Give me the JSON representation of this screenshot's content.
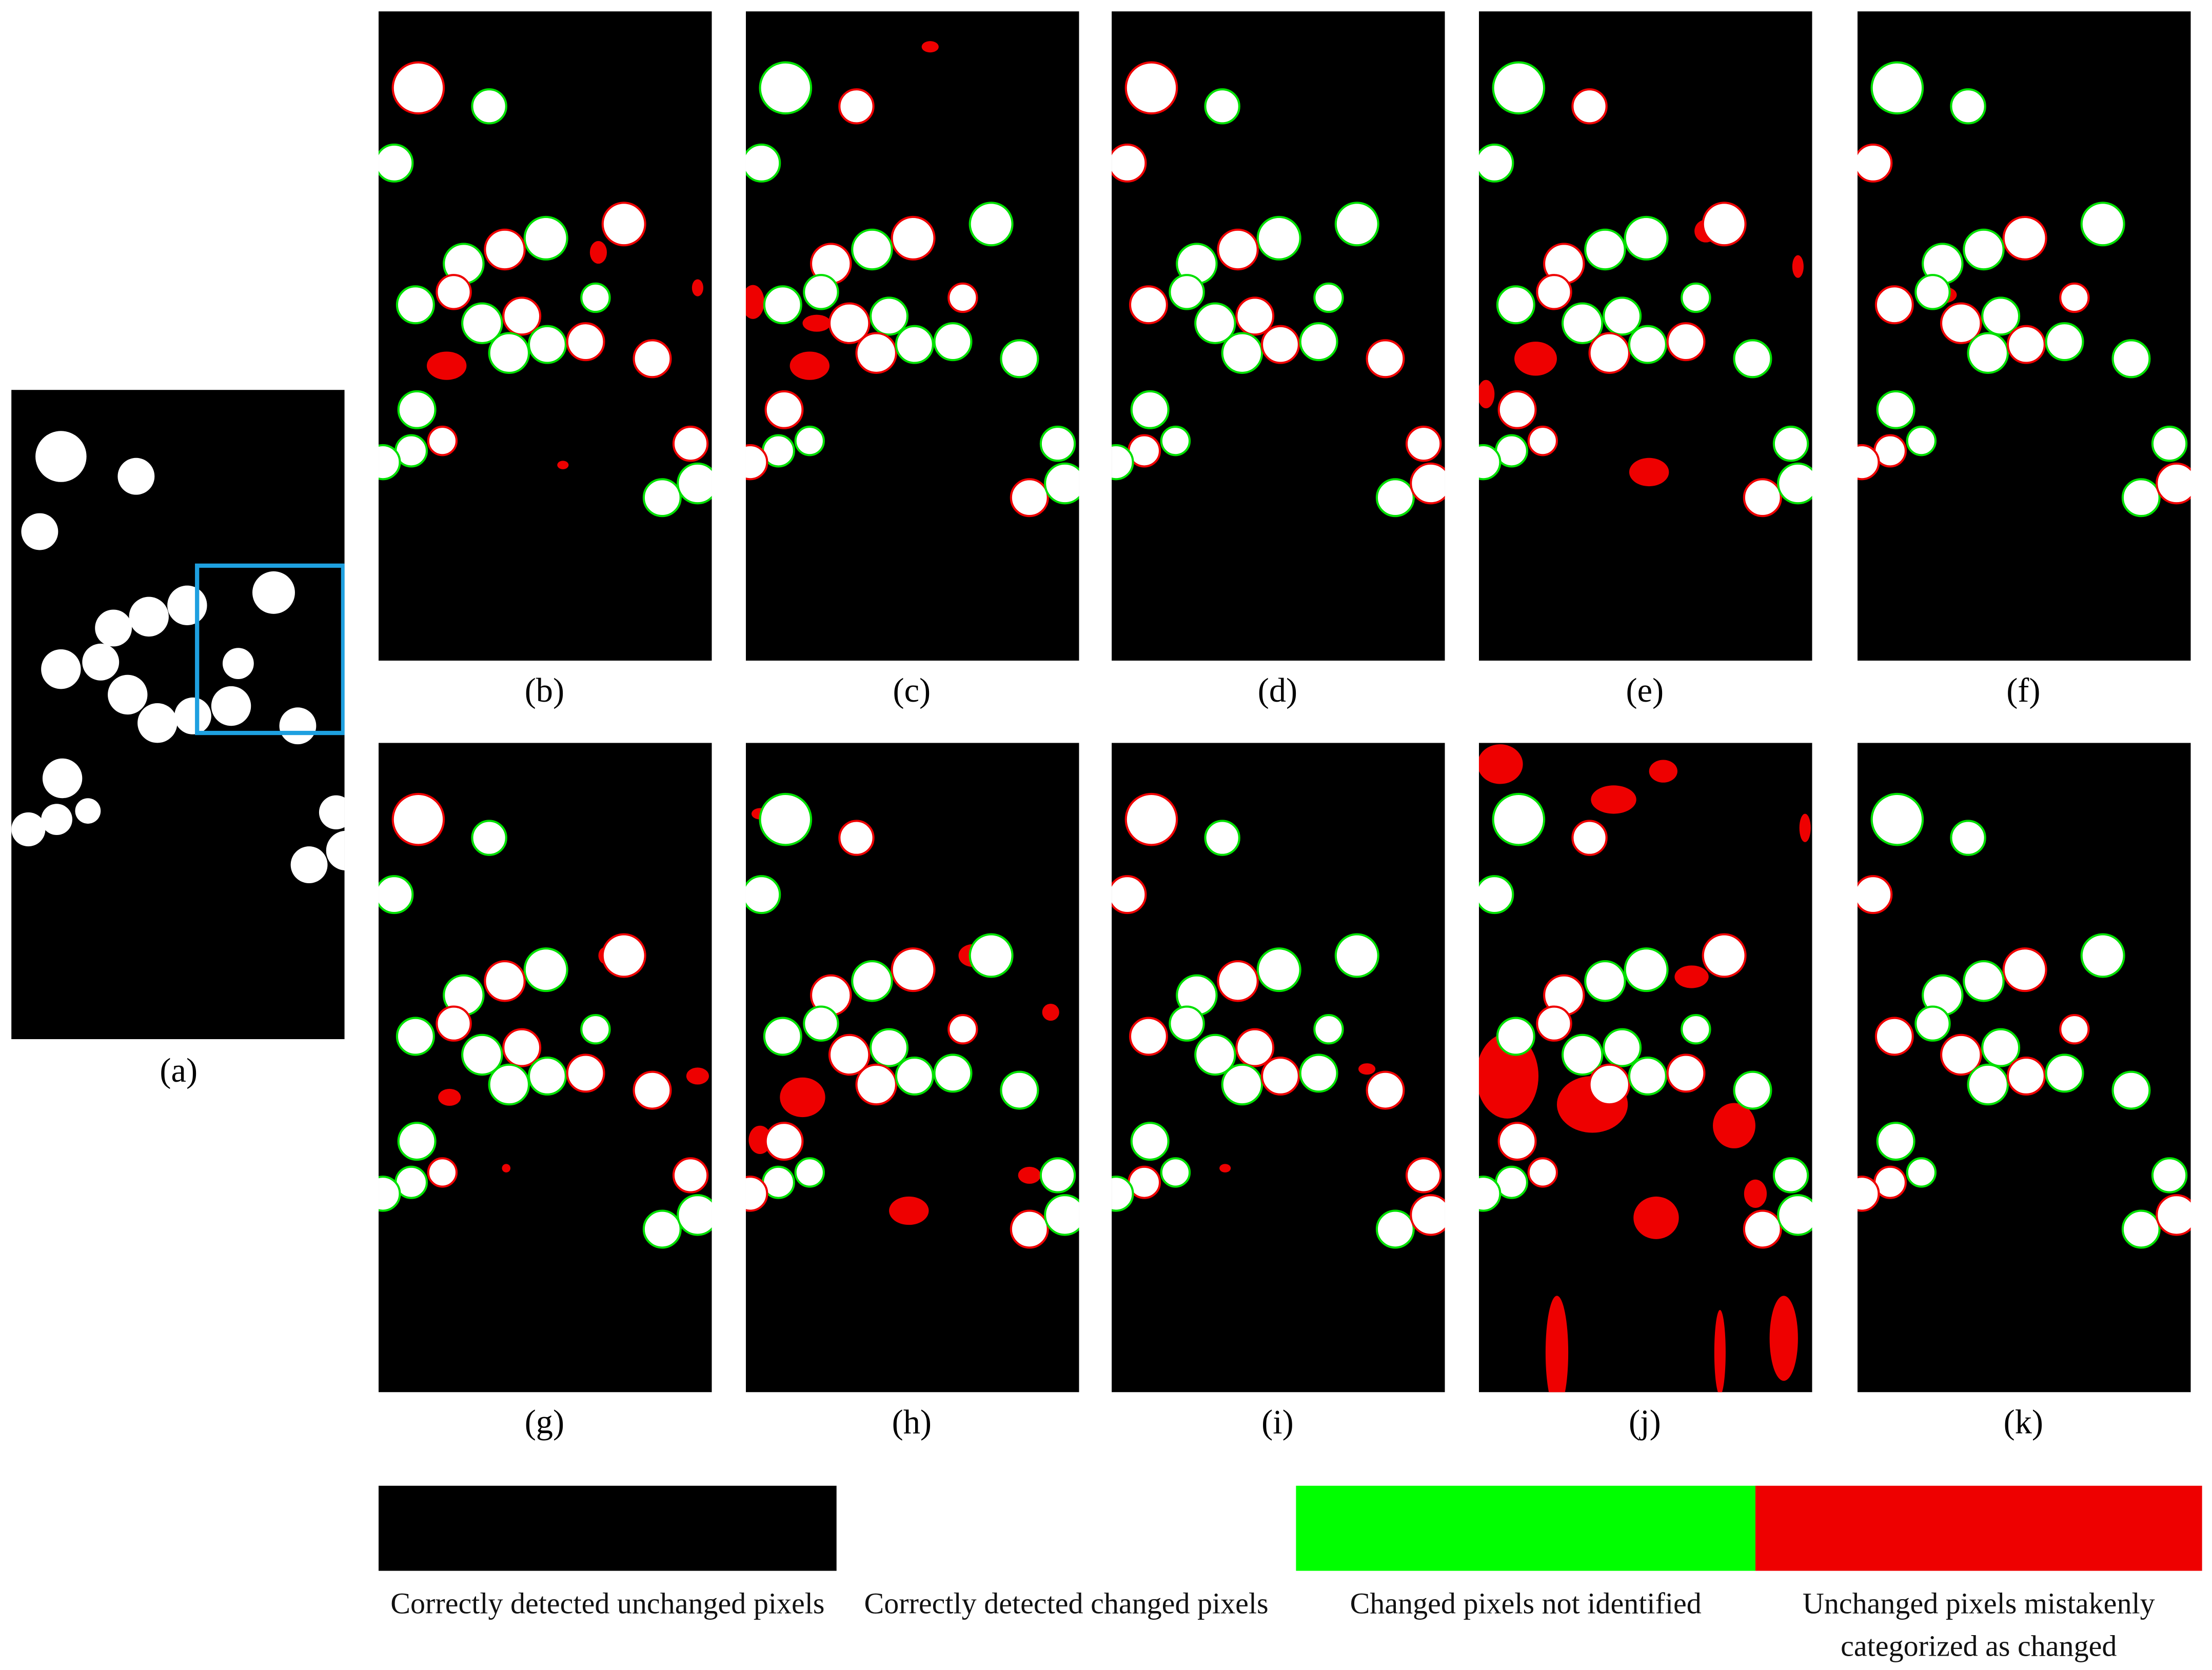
{
  "panels": [
    {
      "label": "(a)"
    },
    {
      "label": "(b)"
    },
    {
      "label": "(c)"
    },
    {
      "label": "(d)"
    },
    {
      "label": "(e)"
    },
    {
      "label": "(f)"
    },
    {
      "label": "(g)"
    },
    {
      "label": "(h)"
    },
    {
      "label": "(i)"
    },
    {
      "label": "(j)"
    },
    {
      "label": "(k)"
    }
  ],
  "legend": [
    {
      "label": "Correctly detected unchanged pixels",
      "color": "#000000"
    },
    {
      "label": "Correctly detected changed pixels",
      "color": "#ffffff"
    },
    {
      "label": "Changed pixels not identified",
      "color": "#00ff00"
    },
    {
      "label": "Unchanged pixels mistakenly categorized as changed",
      "color": "#ee0000"
    }
  ]
}
